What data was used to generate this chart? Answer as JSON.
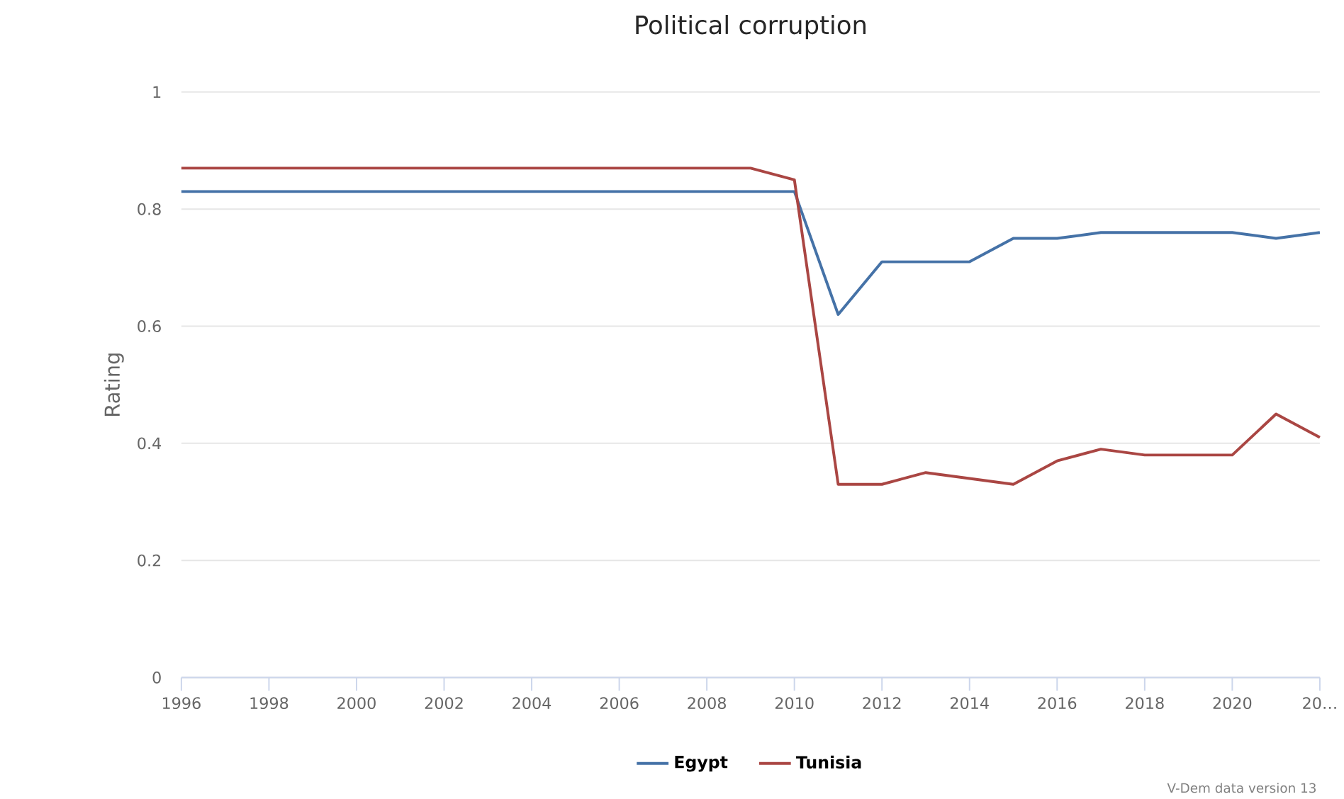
{
  "chart_data": {
    "type": "line",
    "title": "Political corruption",
    "ylabel": "Rating",
    "x": [
      1996,
      1997,
      1998,
      1999,
      2000,
      2001,
      2002,
      2003,
      2004,
      2005,
      2006,
      2007,
      2008,
      2009,
      2010,
      2011,
      2012,
      2013,
      2014,
      2015,
      2016,
      2017,
      2018,
      2019,
      2020,
      2021,
      2022
    ],
    "series": [
      {
        "name": "Egypt",
        "color": "#4572a7",
        "values": [
          0.83,
          0.83,
          0.83,
          0.83,
          0.83,
          0.83,
          0.83,
          0.83,
          0.83,
          0.83,
          0.83,
          0.83,
          0.83,
          0.83,
          0.83,
          0.62,
          0.71,
          0.71,
          0.71,
          0.75,
          0.75,
          0.76,
          0.76,
          0.76,
          0.76,
          0.75,
          0.76
        ]
      },
      {
        "name": "Tunisia",
        "color": "#aa4643",
        "values": [
          0.87,
          0.87,
          0.87,
          0.87,
          0.87,
          0.87,
          0.87,
          0.87,
          0.87,
          0.87,
          0.87,
          0.87,
          0.87,
          0.87,
          0.85,
          0.33,
          0.33,
          0.35,
          0.34,
          0.33,
          0.37,
          0.39,
          0.38,
          0.38,
          0.38,
          0.45,
          0.41
        ]
      }
    ],
    "xlim": [
      1996,
      2022
    ],
    "xticks": [
      1996,
      1998,
      2000,
      2002,
      2004,
      2006,
      2008,
      2010,
      2012,
      2014,
      2016,
      2018,
      2020,
      {
        "value": 2022,
        "label": "20…"
      }
    ],
    "ylim": [
      0,
      1
    ],
    "yticks": [
      0,
      0.2,
      0.4,
      0.6,
      0.8,
      1
    ],
    "grid": "y",
    "legend": "bottom",
    "marker": "none",
    "line_style": "solid",
    "annotations": [
      "V-Dem data version 13"
    ]
  }
}
